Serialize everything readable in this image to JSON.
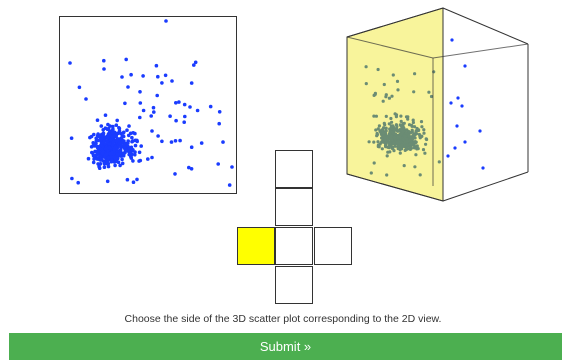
{
  "instruction": "Choose the side of the 3D scatter plot corresponding to the 2D view.",
  "submit": {
    "label": "Submit »"
  },
  "net": {
    "selected_face": "left"
  },
  "colors": {
    "accent_green": "#4caf50",
    "face_highlight": "#ffff00",
    "cube_face_tint": "#f7f28a",
    "point_blue": "#1a3cff",
    "point_grey": "#6b8c74",
    "outline": "#333333"
  },
  "icons": {
    "submit_arrow": "double-chevron-right"
  }
}
